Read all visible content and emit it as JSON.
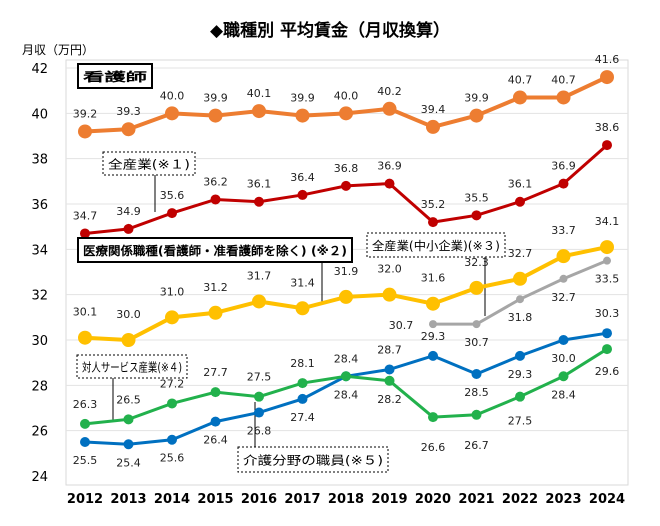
{
  "chart_data": {
    "type": "line",
    "title": "◆職種別 平均賃金（月収換算）",
    "ylabel": "月収（万円）",
    "xlabel": "",
    "ylim": [
      24,
      42
    ],
    "yticks": [
      24,
      26,
      28,
      30,
      32,
      34,
      36,
      38,
      40,
      42
    ],
    "grid": true,
    "categories": [
      "2012",
      "2013",
      "2014",
      "2015",
      "2016",
      "2017",
      "2018",
      "2019",
      "2020",
      "2021",
      "2022",
      "2023",
      "2024"
    ],
    "series": [
      {
        "name": "看護師",
        "color": "#ED7D31",
        "values": [
          39.2,
          39.3,
          40.0,
          39.9,
          40.1,
          39.9,
          40.0,
          40.2,
          39.4,
          39.9,
          40.7,
          40.7,
          41.6
        ]
      },
      {
        "name": "全産業(※１)",
        "color": "#C00000",
        "values": [
          34.7,
          34.9,
          35.6,
          36.2,
          36.1,
          36.4,
          36.8,
          36.9,
          35.2,
          35.5,
          36.1,
          36.9,
          38.6
        ]
      },
      {
        "name": "医療関係職種(看護師・准看護師を除く) (※２)",
        "color": "#FFC000",
        "values": [
          30.1,
          30.0,
          31.0,
          31.2,
          31.7,
          31.4,
          31.9,
          32.0,
          31.6,
          32.3,
          32.7,
          33.7,
          34.1
        ]
      },
      {
        "name": "全産業(中小企業)(※３)",
        "color": "#A6A6A6",
        "values": [
          null,
          null,
          null,
          null,
          null,
          null,
          null,
          null,
          30.7,
          30.7,
          31.8,
          32.7,
          33.5
        ]
      },
      {
        "name": "対人サービス産業(※４)",
        "color": "#0070C0",
        "values": [
          25.5,
          25.4,
          25.6,
          26.4,
          26.8,
          27.4,
          28.4,
          28.7,
          29.3,
          28.5,
          29.3,
          30.0,
          30.3
        ]
      },
      {
        "name": "介護分野の職員(※５)",
        "color": "#22B14C",
        "values": [
          26.3,
          26.5,
          27.2,
          27.7,
          27.5,
          28.1,
          28.4,
          28.2,
          26.6,
          26.7,
          27.5,
          28.4,
          29.6
        ]
      }
    ]
  }
}
